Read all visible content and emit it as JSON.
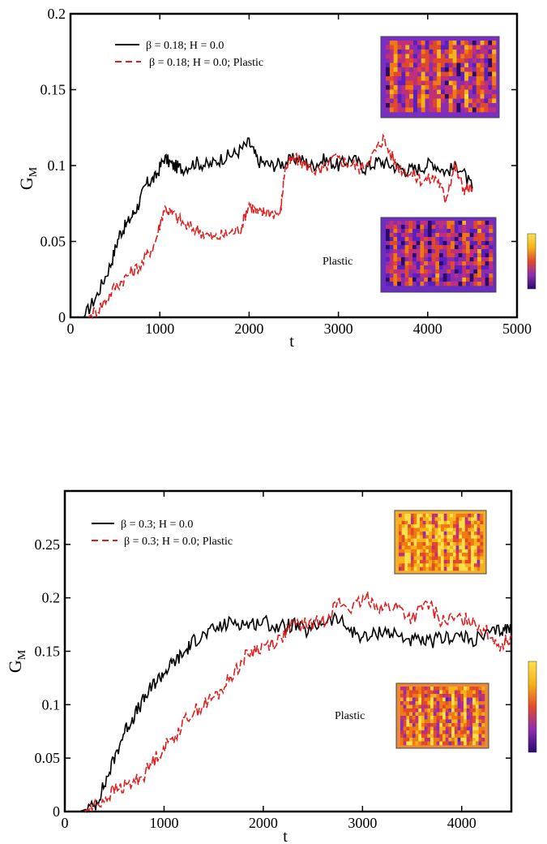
{
  "colors": {
    "series_black": "#000000",
    "series_red": "#dd1f1f",
    "heatmap_scale": [
      "#2a0a6b",
      "#5a1fc0",
      "#8c2db0",
      "#c0307a",
      "#e04a2a",
      "#f07a10",
      "#f6b21a",
      "#fbe04a"
    ]
  },
  "chart_data": [
    {
      "type": "line",
      "ylabel": "G",
      "ylabel_sub": "M",
      "xlabel": "t",
      "xlim": [
        0,
        5000
      ],
      "ylim": [
        0,
        0.2
      ],
      "xticks": [
        0,
        1000,
        2000,
        3000,
        4000,
        5000
      ],
      "xtick_labels": [
        "0",
        "1000",
        "2000",
        "3000",
        "4000",
        "5000"
      ],
      "yticks": [
        0,
        0.05,
        0.1,
        0.15,
        0.2
      ],
      "ytick_labels": [
        "0",
        "0.05",
        "0.1",
        "0.15",
        "0.2"
      ],
      "legend_position": "top-left",
      "series": [
        {
          "name": "β = 0.18; H = 0.0",
          "color": "#000000",
          "style": "solid",
          "x": [
            150,
            300,
            450,
            550,
            650,
            750,
            850,
            950,
            1050,
            1150,
            1250,
            1400,
            1550,
            1700,
            1850,
            2000,
            2100,
            2250,
            2400,
            2550,
            2700,
            2850,
            3000,
            3150,
            3300,
            3450,
            3600,
            3750,
            3900,
            4050,
            4200,
            4350,
            4500
          ],
          "y": [
            0.0,
            0.015,
            0.035,
            0.055,
            0.063,
            0.073,
            0.088,
            0.092,
            0.105,
            0.1,
            0.098,
            0.102,
            0.1,
            0.105,
            0.108,
            0.115,
            0.103,
            0.1,
            0.102,
            0.105,
            0.1,
            0.104,
            0.1,
            0.105,
            0.098,
            0.103,
            0.1,
            0.097,
            0.098,
            0.102,
            0.096,
            0.1,
            0.085
          ]
        },
        {
          "name": "β = 0.18; H = 0.0;  Plastic",
          "color": "#dd1f1f",
          "style": "dashed",
          "x": [
            200,
            350,
            500,
            650,
            800,
            950,
            1050,
            1150,
            1300,
            1450,
            1600,
            1750,
            1900,
            2000,
            2100,
            2200,
            2350,
            2400,
            2500,
            2650,
            2800,
            2950,
            3100,
            3250,
            3400,
            3500,
            3650,
            3800,
            3950,
            4100,
            4200,
            4300,
            4400,
            4500
          ],
          "y": [
            0.0,
            0.008,
            0.02,
            0.028,
            0.035,
            0.05,
            0.072,
            0.068,
            0.06,
            0.057,
            0.052,
            0.055,
            0.058,
            0.075,
            0.068,
            0.07,
            0.068,
            0.098,
            0.105,
            0.1,
            0.095,
            0.105,
            0.102,
            0.098,
            0.108,
            0.118,
            0.1,
            0.095,
            0.09,
            0.092,
            0.078,
            0.1,
            0.085,
            0.085
          ]
        }
      ],
      "annotations": {
        "plastic_label": "Plastic"
      }
    },
    {
      "type": "line",
      "ylabel": "G",
      "ylabel_sub": "M",
      "xlabel": "t",
      "xlim": [
        0,
        4500
      ],
      "ylim": [
        0,
        0.3
      ],
      "xticks": [
        0,
        1000,
        2000,
        3000,
        4000
      ],
      "xtick_labels": [
        "0",
        "1000",
        "2000",
        "3000",
        "4000"
      ],
      "yticks": [
        0,
        0.05,
        0.1,
        0.15,
        0.2,
        0.25
      ],
      "ytick_labels": [
        "0",
        "0.05",
        "0.1",
        "0.15",
        "0.2",
        "0.25"
      ],
      "legend_position": "top-left",
      "series": [
        {
          "name": "β = 0.3; H = 0.0",
          "color": "#000000",
          "style": "solid",
          "x": [
            150,
            300,
            400,
            500,
            600,
            700,
            800,
            900,
            1000,
            1100,
            1200,
            1300,
            1400,
            1550,
            1700,
            1850,
            2000,
            2150,
            2300,
            2450,
            2600,
            2750,
            2900,
            3050,
            3200,
            3350,
            3500,
            3650,
            3800,
            3950,
            4100,
            4250,
            4400,
            4500
          ],
          "y": [
            0.0,
            0.005,
            0.025,
            0.05,
            0.075,
            0.09,
            0.105,
            0.12,
            0.13,
            0.14,
            0.148,
            0.16,
            0.165,
            0.172,
            0.178,
            0.175,
            0.178,
            0.172,
            0.175,
            0.168,
            0.178,
            0.18,
            0.168,
            0.162,
            0.17,
            0.165,
            0.16,
            0.158,
            0.162,
            0.165,
            0.16,
            0.165,
            0.17,
            0.172
          ]
        },
        {
          "name": "β = 0.3; H = 0.0; Plastic",
          "color": "#dd1f1f",
          "style": "dashed",
          "x": [
            200,
            350,
            500,
            650,
            800,
            950,
            1100,
            1250,
            1400,
            1550,
            1700,
            1850,
            2000,
            2150,
            2300,
            2450,
            2600,
            2750,
            2900,
            3050,
            3200,
            3350,
            3500,
            3650,
            3800,
            3950,
            4100,
            4250,
            4400,
            4500
          ],
          "y": [
            0.0,
            0.008,
            0.02,
            0.025,
            0.035,
            0.055,
            0.07,
            0.09,
            0.1,
            0.11,
            0.13,
            0.148,
            0.155,
            0.16,
            0.175,
            0.175,
            0.178,
            0.195,
            0.19,
            0.2,
            0.19,
            0.192,
            0.18,
            0.195,
            0.178,
            0.18,
            0.18,
            0.168,
            0.155,
            0.165
          ]
        }
      ],
      "annotations": {
        "plastic_label": "Plastic"
      }
    }
  ]
}
